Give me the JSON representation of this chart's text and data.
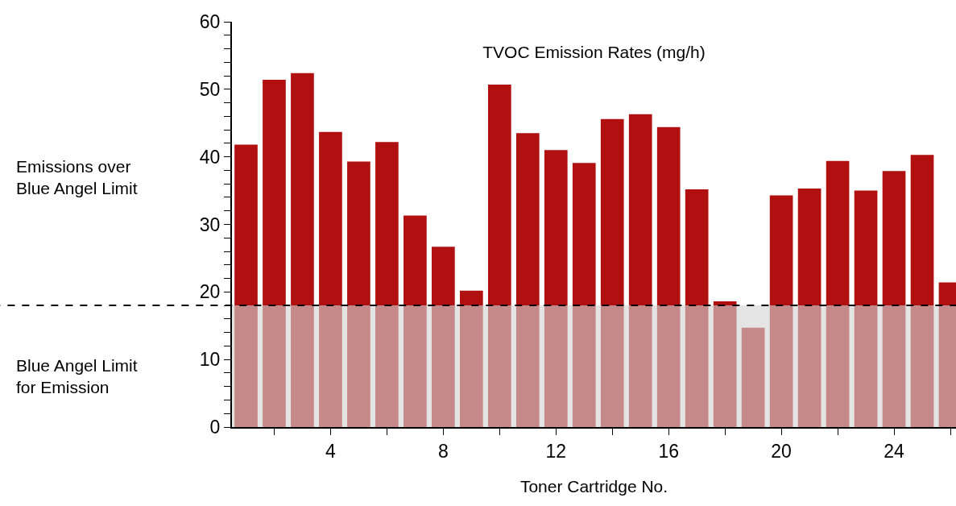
{
  "chart_data": {
    "type": "bar",
    "title": "TVOC Emission Rates (mg/h)",
    "xlabel": "Toner Cartridge No.",
    "x": [
      1,
      2,
      3,
      4,
      5,
      6,
      7,
      8,
      9,
      10,
      11,
      12,
      13,
      14,
      15,
      16,
      17,
      18,
      19,
      20,
      21,
      22,
      23,
      24,
      25,
      26
    ],
    "values": [
      41.8,
      51.4,
      52.4,
      43.7,
      39.3,
      42.2,
      31.3,
      26.7,
      20.2,
      50.7,
      43.5,
      41.0,
      39.1,
      45.6,
      46.3,
      44.4,
      35.2,
      18.6,
      14.7,
      34.3,
      35.3,
      39.4,
      35.0,
      37.9,
      40.3,
      21.4
    ],
    "color": "#b01010",
    "xlim": [
      0.5,
      26.2
    ],
    "xticks": [
      {
        "value": 2,
        "label": null
      },
      4,
      {
        "value": 6,
        "label": null
      },
      8,
      {
        "value": 10,
        "label": null
      },
      12,
      {
        "value": 14,
        "label": null
      },
      16,
      {
        "value": 18,
        "label": null
      },
      20,
      {
        "value": 22,
        "label": null
      },
      24,
      {
        "value": 26,
        "label": null
      }
    ],
    "ylim": [
      0,
      60
    ],
    "yticks": [
      0,
      {
        "value": 2,
        "label": null
      },
      {
        "value": 4,
        "label": null
      },
      {
        "value": 6,
        "label": null
      },
      {
        "value": 8,
        "label": null
      },
      10,
      {
        "value": 12,
        "label": null
      },
      {
        "value": 14,
        "label": null
      },
      {
        "value": 16,
        "label": null
      },
      {
        "value": 18,
        "label": null
      },
      20,
      {
        "value": 22,
        "label": null
      },
      {
        "value": 24,
        "label": null
      },
      {
        "value": 26,
        "label": null
      },
      {
        "value": 28,
        "label": null
      },
      30,
      {
        "value": 32,
        "label": null
      },
      {
        "value": 34,
        "label": null
      },
      {
        "value": 36,
        "label": null
      },
      {
        "value": 38,
        "label": null
      },
      40,
      {
        "value": 42,
        "label": null
      },
      {
        "value": 44,
        "label": null
      },
      {
        "value": 46,
        "label": null
      },
      {
        "value": 48,
        "label": null
      },
      50,
      {
        "value": 52,
        "label": null
      },
      {
        "value": 54,
        "label": null
      },
      {
        "value": 56,
        "label": null
      },
      {
        "value": 58,
        "label": null
      },
      60
    ],
    "ref_lines": [
      {
        "axis": "y",
        "value": 18,
        "line_style": "dashed",
        "color": "#000000"
      }
    ],
    "bands": [
      {
        "axis": "y",
        "from": 0,
        "to": 18,
        "color": "#d4d4d4"
      }
    ],
    "annotations": [
      "Emissions over\nBlue Angel Limit",
      "Blue Angel Limit\nfor Emission"
    ]
  }
}
